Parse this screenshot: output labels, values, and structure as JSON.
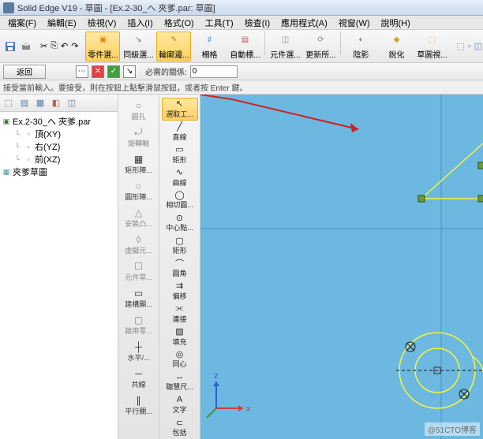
{
  "titlebar": {
    "title": "Solid Edge V19 - 草圖 - [Ex.2-30_へ  夾爹.par: 草圖]"
  },
  "menubar": {
    "items": [
      "檔案(F)",
      "編輯(E)",
      "檢視(V)",
      "插入(I)",
      "格式(O)",
      "工具(T)",
      "檢查(I)",
      "應用程式(A)",
      "視窗(W)",
      "說明(H)"
    ]
  },
  "toolbar1": {
    "save_tip": "儲存",
    "undo_tip": "復原",
    "redo_tip": "重做",
    "copy_tip": "複製",
    "cut_tip": "剪下",
    "paste_tip": "貼上",
    "big": [
      {
        "key": "partsel",
        "label": "零件選...",
        "active": true,
        "icon": "▣",
        "color": "#d98820"
      },
      {
        "key": "peer",
        "label": "同級選...",
        "icon": "↘",
        "color": "#5a7ca0"
      },
      {
        "key": "outline",
        "label": "輪廓邊...",
        "active": true,
        "icon": "✎",
        "color": "#d08820"
      },
      {
        "key": "grid",
        "label": "柵格",
        "icon": "♯",
        "color": "#4a8ad0"
      },
      {
        "key": "autodim",
        "label": "自動標...",
        "icon": "▤",
        "color": "#c05a5a"
      },
      {
        "key": "compsel",
        "label": "元件選...",
        "icon": "◫",
        "color": "#888"
      },
      {
        "key": "update",
        "label": "更新所...",
        "icon": "⟳",
        "color": "#888"
      },
      {
        "key": "shadow",
        "label": "陰影",
        "icon": "◐",
        "color": "#5a7ca0"
      },
      {
        "key": "sharpen",
        "label": "銳化",
        "icon": "◆",
        "color": "#d0a020"
      },
      {
        "key": "sketchview",
        "label": "草圖視...",
        "icon": "⬚",
        "color": "#d0a020"
      }
    ],
    "view3d_tip": "3D"
  },
  "toolbar2": {
    "return_label": "返回",
    "required_label": "必需的關係:",
    "required_value": "0"
  },
  "status": {
    "text": "接受當前輸入。要接受，則在按鈕上點擊滑鼠按鈕，或者按 Enter 鍵。"
  },
  "tree": {
    "root": "Ex.2-30_へ  夾爹.par",
    "items": [
      {
        "label": "頂(XY)",
        "icon": "▫"
      },
      {
        "label": "右(YZ)",
        "icon": "▫"
      },
      {
        "label": "前(XZ)",
        "icon": "▫"
      }
    ],
    "sketch": "夾爹草圖"
  },
  "midcol": {
    "items": [
      {
        "label": "圓孔",
        "icon": "○",
        "on": false
      },
      {
        "label": "旋轉軸",
        "icon": "⤾",
        "on": false
      },
      {
        "label": "矩形陣...",
        "icon": "▦",
        "on": true
      },
      {
        "label": "圓形陣...",
        "icon": "◌",
        "on": true
      },
      {
        "label": "安裝凸...",
        "icon": "△",
        "on": false
      },
      {
        "label": "虛擬元...",
        "icon": "◊",
        "on": false
      },
      {
        "label": "元件草...",
        "icon": "☐",
        "on": false
      },
      {
        "label": "建構顯...",
        "icon": "▭",
        "on": true
      },
      {
        "label": "啟用零...",
        "icon": "▢",
        "on": false
      },
      {
        "label": "水平/...",
        "icon": "┼",
        "on": true
      },
      {
        "label": "共線",
        "icon": "─",
        "on": true
      },
      {
        "label": "平行關...",
        "icon": "∥",
        "on": true
      }
    ]
  },
  "midcol2": {
    "items": [
      {
        "label": "選取工...",
        "icon": "↖",
        "sel": true
      },
      {
        "label": "直線",
        "icon": "╱"
      },
      {
        "label": "矩形",
        "icon": "▭"
      },
      {
        "label": "曲線",
        "icon": "∿"
      },
      {
        "label": "相切圓...",
        "icon": "◯"
      },
      {
        "label": "中心點...",
        "icon": "⊙"
      },
      {
        "label": "矩形",
        "icon": "▢"
      },
      {
        "label": "圓角",
        "icon": "⌒"
      },
      {
        "label": "偏移",
        "icon": "⇉"
      },
      {
        "label": "連接",
        "icon": "⫘"
      },
      {
        "label": "填充",
        "icon": "▨"
      },
      {
        "label": "同心",
        "icon": "◎"
      },
      {
        "label": "聰慧尺...",
        "icon": "↔"
      },
      {
        "label": "文字",
        "icon": "A"
      },
      {
        "label": "包括",
        "icon": "⊂"
      }
    ]
  },
  "canvas": {
    "bg": "#6db8e0",
    "sketch_color": "#f5f53a",
    "axis_x_color": "#d04040",
    "axis_y_color": "#d04040",
    "axis_z_color": "#3060d0",
    "arrow_color": "#d02020",
    "handle_fill": "#6a9a3a",
    "handle_stroke": "#305010",
    "dashed_color": "#303030",
    "axis_labels": {
      "x": "x",
      "z": "z"
    }
  },
  "watermark": "@51CTO博客"
}
